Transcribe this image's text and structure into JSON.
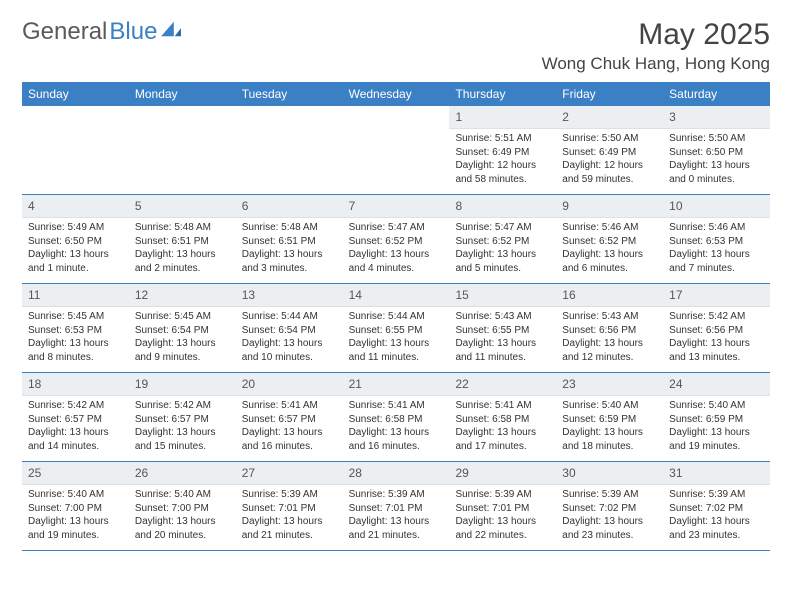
{
  "brand": {
    "part1": "General",
    "part2": "Blue"
  },
  "title": "May 2025",
  "location": "Wong Chuk Hang, Hong Kong",
  "colors": {
    "header_bg": "#3b7fc4",
    "header_text": "#ffffff",
    "daynum_bg": "#eceff1",
    "border": "#3b7fc4",
    "text": "#333333",
    "background": "#ffffff"
  },
  "weekdays": [
    "Sunday",
    "Monday",
    "Tuesday",
    "Wednesday",
    "Thursday",
    "Friday",
    "Saturday"
  ],
  "weeks": [
    [
      {
        "empty": true
      },
      {
        "empty": true
      },
      {
        "empty": true
      },
      {
        "empty": true
      },
      {
        "n": "1",
        "sr": "Sunrise: 5:51 AM",
        "ss": "Sunset: 6:49 PM",
        "d1": "Daylight: 12 hours",
        "d2": "and 58 minutes."
      },
      {
        "n": "2",
        "sr": "Sunrise: 5:50 AM",
        "ss": "Sunset: 6:49 PM",
        "d1": "Daylight: 12 hours",
        "d2": "and 59 minutes."
      },
      {
        "n": "3",
        "sr": "Sunrise: 5:50 AM",
        "ss": "Sunset: 6:50 PM",
        "d1": "Daylight: 13 hours",
        "d2": "and 0 minutes."
      }
    ],
    [
      {
        "n": "4",
        "sr": "Sunrise: 5:49 AM",
        "ss": "Sunset: 6:50 PM",
        "d1": "Daylight: 13 hours",
        "d2": "and 1 minute."
      },
      {
        "n": "5",
        "sr": "Sunrise: 5:48 AM",
        "ss": "Sunset: 6:51 PM",
        "d1": "Daylight: 13 hours",
        "d2": "and 2 minutes."
      },
      {
        "n": "6",
        "sr": "Sunrise: 5:48 AM",
        "ss": "Sunset: 6:51 PM",
        "d1": "Daylight: 13 hours",
        "d2": "and 3 minutes."
      },
      {
        "n": "7",
        "sr": "Sunrise: 5:47 AM",
        "ss": "Sunset: 6:52 PM",
        "d1": "Daylight: 13 hours",
        "d2": "and 4 minutes."
      },
      {
        "n": "8",
        "sr": "Sunrise: 5:47 AM",
        "ss": "Sunset: 6:52 PM",
        "d1": "Daylight: 13 hours",
        "d2": "and 5 minutes."
      },
      {
        "n": "9",
        "sr": "Sunrise: 5:46 AM",
        "ss": "Sunset: 6:52 PM",
        "d1": "Daylight: 13 hours",
        "d2": "and 6 minutes."
      },
      {
        "n": "10",
        "sr": "Sunrise: 5:46 AM",
        "ss": "Sunset: 6:53 PM",
        "d1": "Daylight: 13 hours",
        "d2": "and 7 minutes."
      }
    ],
    [
      {
        "n": "11",
        "sr": "Sunrise: 5:45 AM",
        "ss": "Sunset: 6:53 PM",
        "d1": "Daylight: 13 hours",
        "d2": "and 8 minutes."
      },
      {
        "n": "12",
        "sr": "Sunrise: 5:45 AM",
        "ss": "Sunset: 6:54 PM",
        "d1": "Daylight: 13 hours",
        "d2": "and 9 minutes."
      },
      {
        "n": "13",
        "sr": "Sunrise: 5:44 AM",
        "ss": "Sunset: 6:54 PM",
        "d1": "Daylight: 13 hours",
        "d2": "and 10 minutes."
      },
      {
        "n": "14",
        "sr": "Sunrise: 5:44 AM",
        "ss": "Sunset: 6:55 PM",
        "d1": "Daylight: 13 hours",
        "d2": "and 11 minutes."
      },
      {
        "n": "15",
        "sr": "Sunrise: 5:43 AM",
        "ss": "Sunset: 6:55 PM",
        "d1": "Daylight: 13 hours",
        "d2": "and 11 minutes."
      },
      {
        "n": "16",
        "sr": "Sunrise: 5:43 AM",
        "ss": "Sunset: 6:56 PM",
        "d1": "Daylight: 13 hours",
        "d2": "and 12 minutes."
      },
      {
        "n": "17",
        "sr": "Sunrise: 5:42 AM",
        "ss": "Sunset: 6:56 PM",
        "d1": "Daylight: 13 hours",
        "d2": "and 13 minutes."
      }
    ],
    [
      {
        "n": "18",
        "sr": "Sunrise: 5:42 AM",
        "ss": "Sunset: 6:57 PM",
        "d1": "Daylight: 13 hours",
        "d2": "and 14 minutes."
      },
      {
        "n": "19",
        "sr": "Sunrise: 5:42 AM",
        "ss": "Sunset: 6:57 PM",
        "d1": "Daylight: 13 hours",
        "d2": "and 15 minutes."
      },
      {
        "n": "20",
        "sr": "Sunrise: 5:41 AM",
        "ss": "Sunset: 6:57 PM",
        "d1": "Daylight: 13 hours",
        "d2": "and 16 minutes."
      },
      {
        "n": "21",
        "sr": "Sunrise: 5:41 AM",
        "ss": "Sunset: 6:58 PM",
        "d1": "Daylight: 13 hours",
        "d2": "and 16 minutes."
      },
      {
        "n": "22",
        "sr": "Sunrise: 5:41 AM",
        "ss": "Sunset: 6:58 PM",
        "d1": "Daylight: 13 hours",
        "d2": "and 17 minutes."
      },
      {
        "n": "23",
        "sr": "Sunrise: 5:40 AM",
        "ss": "Sunset: 6:59 PM",
        "d1": "Daylight: 13 hours",
        "d2": "and 18 minutes."
      },
      {
        "n": "24",
        "sr": "Sunrise: 5:40 AM",
        "ss": "Sunset: 6:59 PM",
        "d1": "Daylight: 13 hours",
        "d2": "and 19 minutes."
      }
    ],
    [
      {
        "n": "25",
        "sr": "Sunrise: 5:40 AM",
        "ss": "Sunset: 7:00 PM",
        "d1": "Daylight: 13 hours",
        "d2": "and 19 minutes."
      },
      {
        "n": "26",
        "sr": "Sunrise: 5:40 AM",
        "ss": "Sunset: 7:00 PM",
        "d1": "Daylight: 13 hours",
        "d2": "and 20 minutes."
      },
      {
        "n": "27",
        "sr": "Sunrise: 5:39 AM",
        "ss": "Sunset: 7:01 PM",
        "d1": "Daylight: 13 hours",
        "d2": "and 21 minutes."
      },
      {
        "n": "28",
        "sr": "Sunrise: 5:39 AM",
        "ss": "Sunset: 7:01 PM",
        "d1": "Daylight: 13 hours",
        "d2": "and 21 minutes."
      },
      {
        "n": "29",
        "sr": "Sunrise: 5:39 AM",
        "ss": "Sunset: 7:01 PM",
        "d1": "Daylight: 13 hours",
        "d2": "and 22 minutes."
      },
      {
        "n": "30",
        "sr": "Sunrise: 5:39 AM",
        "ss": "Sunset: 7:02 PM",
        "d1": "Daylight: 13 hours",
        "d2": "and 23 minutes."
      },
      {
        "n": "31",
        "sr": "Sunrise: 5:39 AM",
        "ss": "Sunset: 7:02 PM",
        "d1": "Daylight: 13 hours",
        "d2": "and 23 minutes."
      }
    ]
  ]
}
